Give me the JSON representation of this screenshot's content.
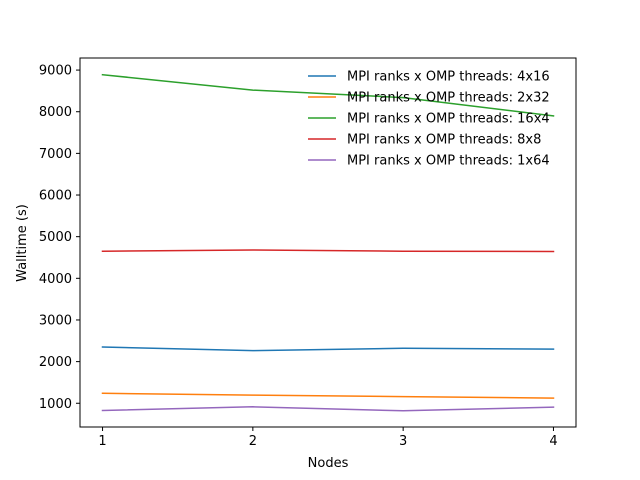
{
  "chart_data": {
    "type": "line",
    "title": "",
    "xlabel": "Nodes",
    "ylabel": "Walltime (s)",
    "x": [
      1,
      2,
      3,
      4
    ],
    "xlim": [
      0.85,
      4.15
    ],
    "ylim": [
      430,
      9290
    ],
    "xticks": [
      1,
      2,
      3,
      4
    ],
    "yticks": [
      1000,
      2000,
      3000,
      4000,
      5000,
      6000,
      7000,
      8000,
      9000
    ],
    "grid": false,
    "legend_position": "top-right",
    "series": [
      {
        "name": "MPI ranks x OMP threads: 4x16",
        "color": "#1f77b4",
        "values": [
          2350,
          2265,
          2320,
          2300
        ]
      },
      {
        "name": "MPI ranks x OMP threads: 2x32",
        "color": "#ff7f0e",
        "values": [
          1240,
          1195,
          1160,
          1125
        ]
      },
      {
        "name": "MPI ranks x OMP threads: 16x4",
        "color": "#2ca02c",
        "values": [
          8890,
          8520,
          8340,
          7900
        ]
      },
      {
        "name": "MPI ranks x OMP threads: 8x8",
        "color": "#d62728",
        "values": [
          4650,
          4680,
          4650,
          4645
        ]
      },
      {
        "name": "MPI ranks x OMP threads: 1x64",
        "color": "#9467bd",
        "values": [
          825,
          915,
          820,
          905
        ]
      }
    ]
  }
}
